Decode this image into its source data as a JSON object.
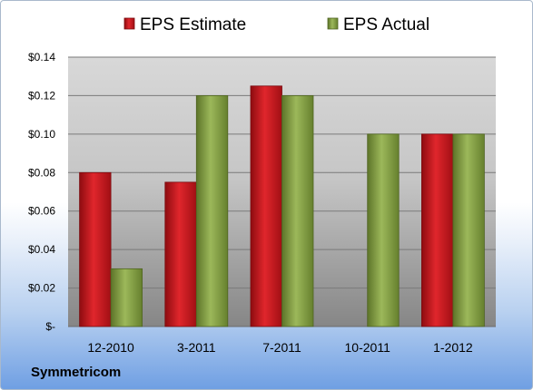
{
  "company": "Symmetricom",
  "colors": {
    "estimate": "#c0141b",
    "actual": "#7d9a3a",
    "plot_top": "#d4d4d4",
    "plot_bottom": "#8c8c8c"
  },
  "chart_data": {
    "type": "bar",
    "title": "",
    "xlabel": "",
    "ylabel": "",
    "categories": [
      "12-2010",
      "3-2011",
      "7-2011",
      "10-2011",
      "1-2012"
    ],
    "series": [
      {
        "name": "EPS Estimate",
        "values": [
          0.08,
          0.075,
          0.125,
          null,
          0.1
        ]
      },
      {
        "name": "EPS Actual",
        "values": [
          0.03,
          0.12,
          0.12,
          0.1,
          0.1
        ]
      }
    ],
    "ylim": [
      0,
      0.14
    ],
    "y_ticks": [
      "$-",
      "$0.02",
      "$0.04",
      "$0.06",
      "$0.08",
      "$0.10",
      "$0.12",
      "$0.14"
    ],
    "grid": true,
    "legend": "top"
  }
}
